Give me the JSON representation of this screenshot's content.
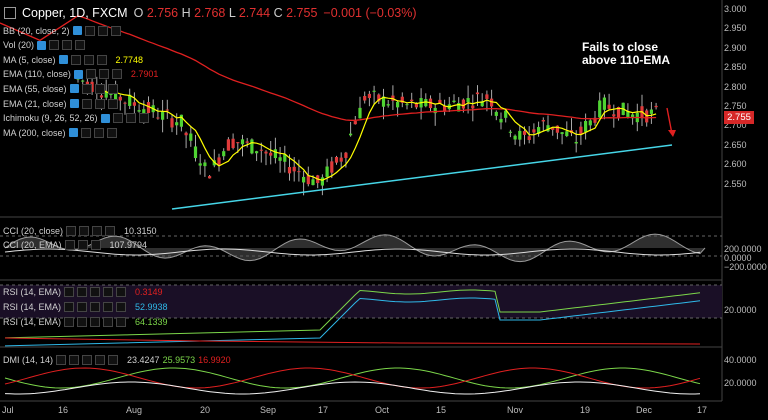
{
  "header": {
    "symbol": "Copper, 1D, FXCM",
    "o_label": "O",
    "o": "2.756",
    "h_label": "H",
    "h": "2.768",
    "l_label": "L",
    "l": "2.744",
    "c_label": "C",
    "c": "2.755",
    "change": "−0.001 (−0.03%)"
  },
  "indicators": [
    {
      "label": "BB (20, close, 2)",
      "value": "",
      "color": "#d0d0d0"
    },
    {
      "label": "Vol (20)",
      "value": "",
      "color": "#d0d0d0"
    },
    {
      "label": "MA (5, close)",
      "value": "2.7748",
      "color": "#ffff00"
    },
    {
      "label": "EMA (110, close)",
      "value": "2.7901",
      "color": "#e02020"
    },
    {
      "label": "EMA (55, close)",
      "value": "",
      "color": "#d0d0d0"
    },
    {
      "label": "EMA (21, close)",
      "value": "",
      "color": "#d0d0d0"
    },
    {
      "label": "Ichimoku (9, 26, 52, 26)",
      "value": "",
      "color": "#d0d0d0"
    },
    {
      "label": "MA (200, close)",
      "value": "",
      "color": "#d0d0d0"
    }
  ],
  "annotation": {
    "line1": "Fails to close",
    "line2": "above 110-EMA"
  },
  "price_axis": [
    "3.000",
    "2.950",
    "2.900",
    "2.850",
    "2.800",
    "2.750",
    "2.700",
    "2.650",
    "2.600",
    "2.550"
  ],
  "last_price_tag": "2.755",
  "cci_pane": {
    "legend1": "CCI (20, close)",
    "value1": "10.3150",
    "legend2": "CCI (20, EMA)",
    "value2": "107.9794",
    "axis": [
      "200.0000",
      "0.0000",
      "−200.0000"
    ]
  },
  "rsi_pane": {
    "legend1": "RSI (14, EMA)",
    "value1": "0.3149",
    "color1": "#e02020",
    "legend2": "RSI (14, EMA)",
    "value2": "52.9938",
    "color2": "#2fb8e8",
    "legend3": "RSI (14, EMA)",
    "value3": "64.1339",
    "color3": "#7cd64a",
    "axis": [
      "20.0000"
    ]
  },
  "dmi_pane": {
    "legend": "DMI (14, 14)",
    "value1": "23.4247",
    "value2": "25.9573",
    "value3": "16.9920",
    "axis": [
      "40.0000",
      "20.0000"
    ]
  },
  "x_axis": [
    "Jul",
    "16",
    "Aug",
    "20",
    "Sep",
    "17",
    "Oct",
    "15",
    "Nov",
    "19",
    "Dec",
    "17"
  ],
  "colors": {
    "bull": "#4fd332",
    "bear": "#e03a3a",
    "ema110": "#e02020",
    "ma5": "#ffff00",
    "trendline": "#46d6e8",
    "background": "#000000"
  }
}
